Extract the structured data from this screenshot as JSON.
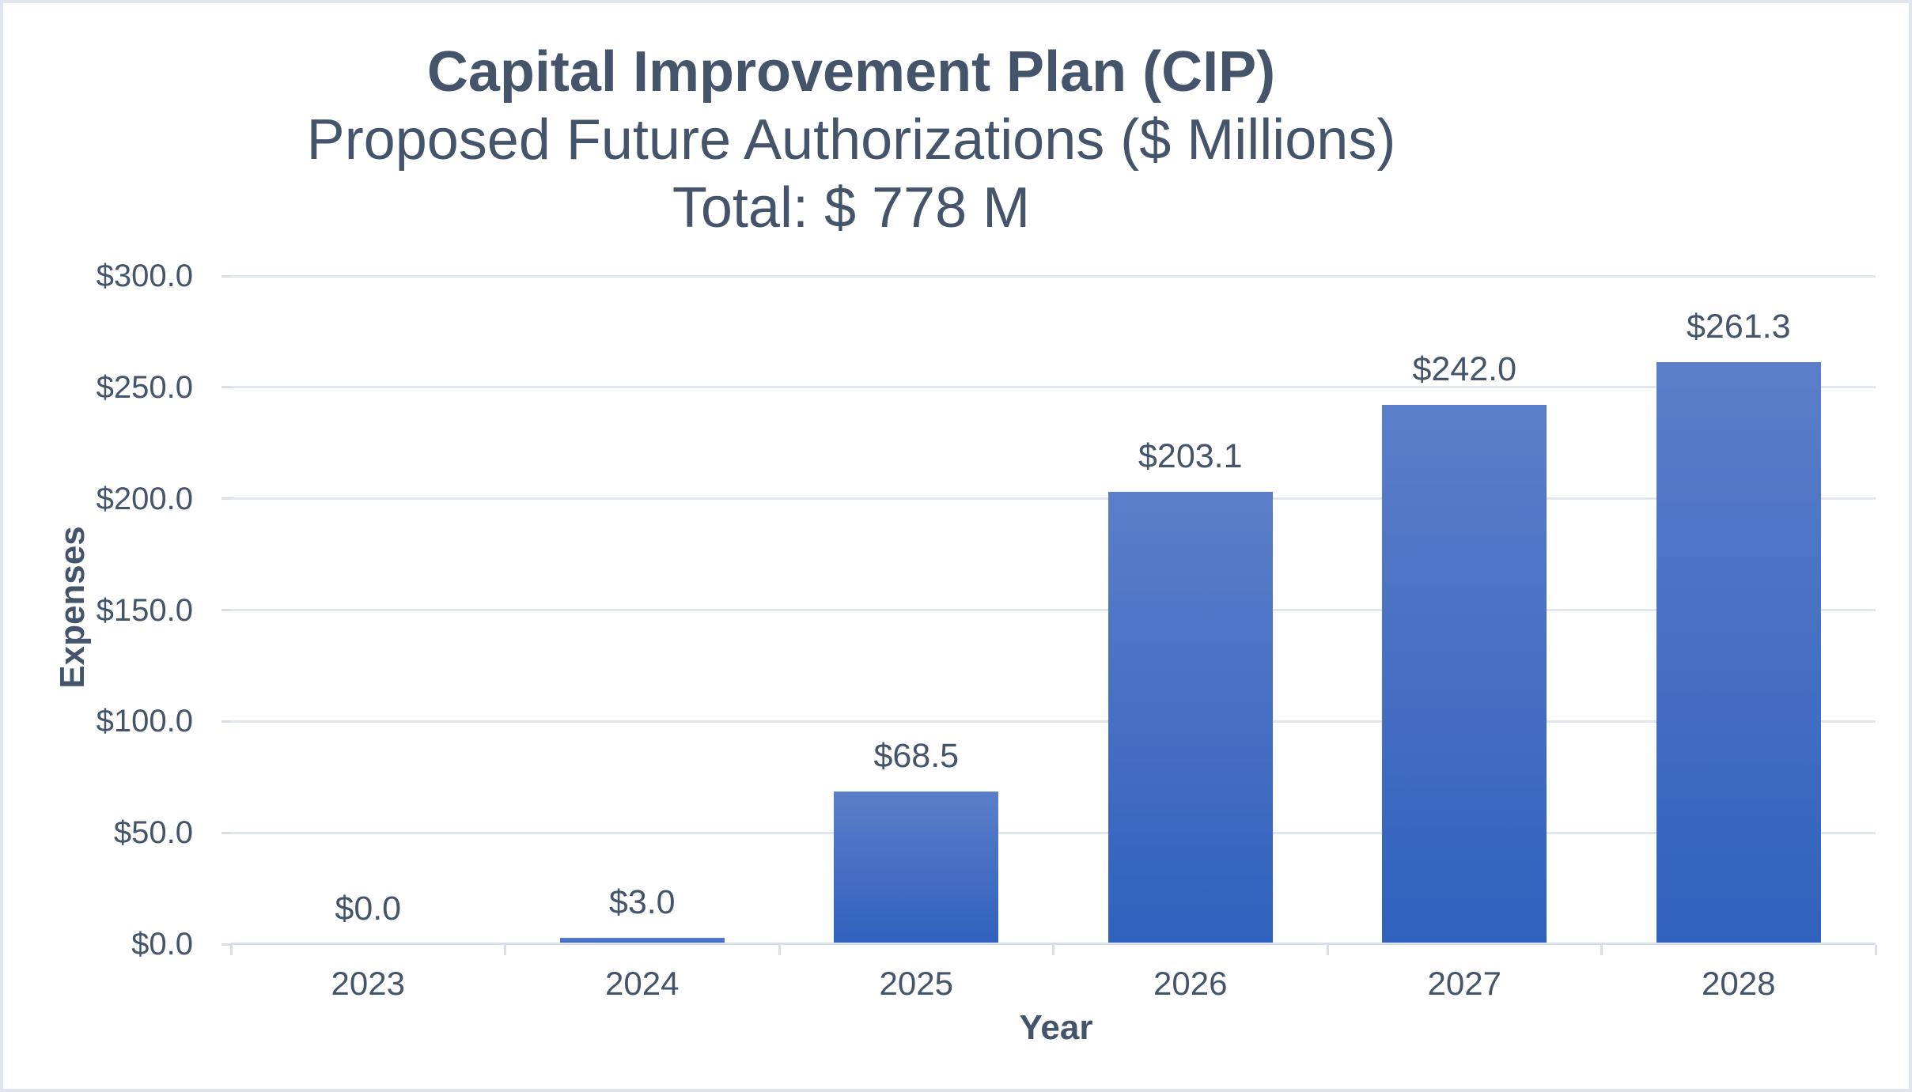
{
  "chart_data": {
    "type": "bar",
    "title": "Capital Improvement Plan (CIP)",
    "subtitle": "Proposed Future Authorizations ($ Millions)",
    "total_label": "Total: $ 778 M",
    "total_millions": 778,
    "xlabel": "Year",
    "ylabel": "Expenses",
    "categories": [
      "2023",
      "2024",
      "2025",
      "2026",
      "2027",
      "2028"
    ],
    "values": [
      0.0,
      3.0,
      68.5,
      203.1,
      242.0,
      261.3
    ],
    "bar_labels": [
      "$0.0",
      "$3.0",
      "$68.5",
      "$203.1",
      "$242.0",
      "$261.3"
    ],
    "ylim": [
      0,
      300
    ],
    "ytick_interval": 50,
    "ytick_labels": [
      "$0.0",
      "$50.0",
      "$100.0",
      "$150.0",
      "$200.0",
      "$250.0",
      "$300.0"
    ],
    "grid": true,
    "legend_position": "none"
  },
  "style": {
    "text_color": "#44546A",
    "gridline_color": "#E2E6EF",
    "axis_line_color": "#D9DFEA",
    "bar_gradient_top": "#5B7EC9",
    "bar_gradient_bottom": "#3061BD",
    "page_border_color": "#DFE4ED",
    "background_color": "#FFFFFF"
  }
}
